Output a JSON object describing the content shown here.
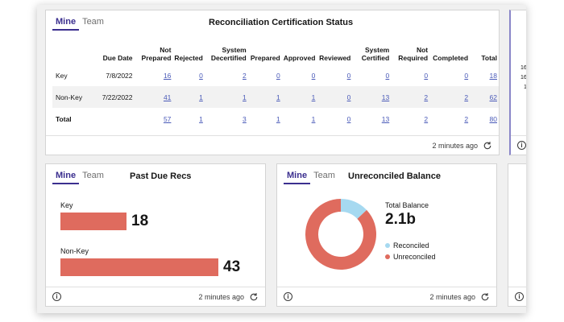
{
  "colors": {
    "accent": "#3b2f8f",
    "link": "#4a5ab8",
    "bar": "#df6b5e",
    "reconciled": "#a6d9f0",
    "unreconciled": "#df6b5e"
  },
  "recon_card": {
    "tabs": [
      {
        "label": "Mine",
        "active": true
      },
      {
        "label": "Team",
        "active": false
      }
    ],
    "title": "Reconciliation Certification Status",
    "columns": [
      "",
      "Due Date",
      "Not Prepared",
      "Rejected",
      "System Decertified",
      "Prepared",
      "Approved",
      "Reviewed",
      "System Certified",
      "Not Required",
      "Completed",
      "Total"
    ],
    "rows": [
      {
        "label": "Key",
        "due_date": "7/8/2022",
        "values": [
          "16",
          "0",
          "2",
          "0",
          "0",
          "0",
          "0",
          "0",
          "0",
          "18"
        ]
      },
      {
        "label": "Non-Key",
        "due_date": "7/22/2022",
        "values": [
          "41",
          "1",
          "1",
          "1",
          "1",
          "0",
          "13",
          "2",
          "2",
          "62"
        ]
      },
      {
        "label": "Total",
        "due_date": "",
        "values": [
          "57",
          "1",
          "3",
          "1",
          "1",
          "0",
          "13",
          "2",
          "2",
          "80"
        ]
      }
    ],
    "updated": "2 minutes ago"
  },
  "right_partial_card": {
    "values": [
      "16",
      "16",
      "1"
    ]
  },
  "past_due_card": {
    "tabs": [
      {
        "label": "Mine",
        "active": true
      },
      {
        "label": "Team",
        "active": false
      }
    ],
    "title": "Past Due Recs",
    "bars": [
      {
        "label": "Key",
        "value": 18
      },
      {
        "label": "Non-Key",
        "value": 43
      }
    ],
    "updated": "2 minutes ago"
  },
  "balance_card": {
    "tabs": [
      {
        "label": "Mine",
        "active": true
      },
      {
        "label": "Team",
        "active": false
      }
    ],
    "title": "Unreconciled Balance",
    "total_label": "Total Balance",
    "total_value": "2.1b",
    "legend": [
      {
        "label": "Reconciled",
        "share": 0.13
      },
      {
        "label": "Unreconciled",
        "share": 0.87
      }
    ],
    "updated": "2 minutes ago"
  }
}
